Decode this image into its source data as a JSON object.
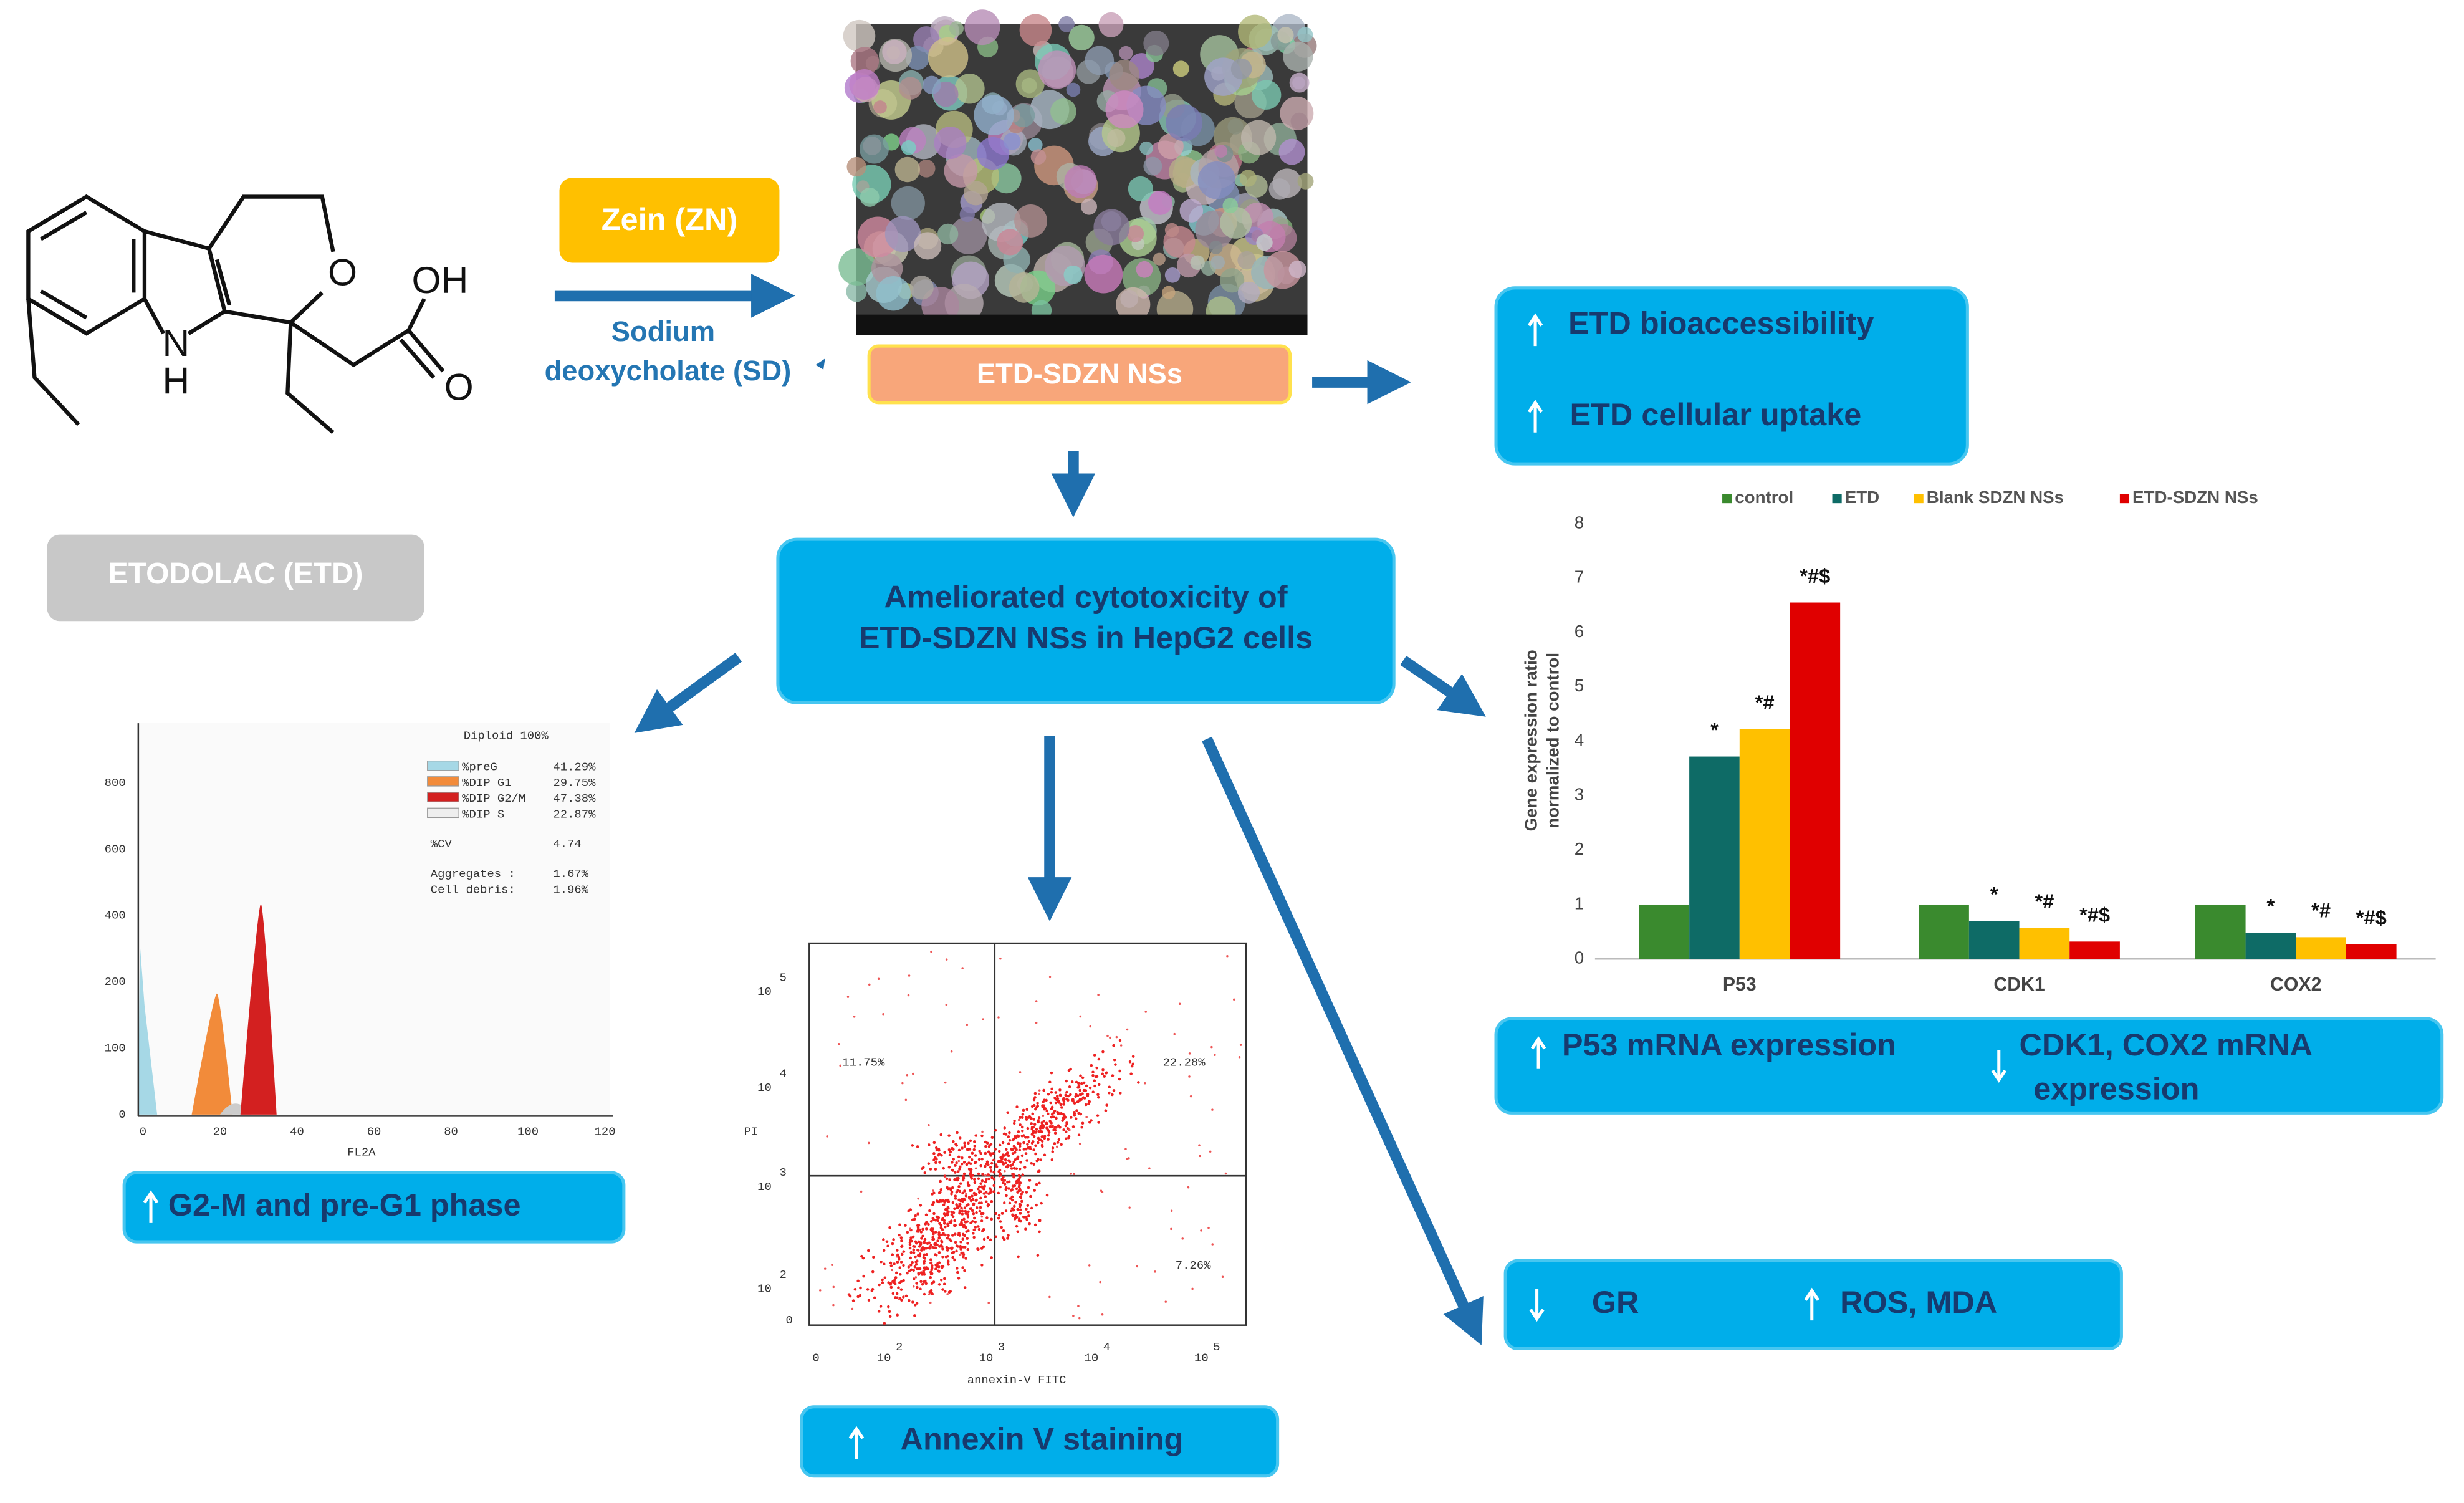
{
  "molecule": {
    "atoms": [
      "OH",
      "O",
      "O",
      "N",
      "H"
    ]
  },
  "boxes": {
    "zein": "Zein (ZN)",
    "sodium": [
      "Sodium",
      "deoxycholate (SD)"
    ],
    "nanosheets": "ETD-SDZN NSs",
    "etodolac": "ETODOLAC (ETD)",
    "cytotoxicity": [
      "Ameliorated cytotoxicity of",
      "ETD-SDZN NSs in HepG2 cells"
    ],
    "uptake": [
      "ETD bioaccessibility",
      "ETD cellular uptake"
    ],
    "expression": [
      "P53 mRNA expression",
      "CDK1, COX2 mRNA",
      "expression"
    ],
    "cell_cycle": "G2-M and pre-G1 phase",
    "annexin": "Annexin V staining",
    "oxidative": [
      "GR",
      "ROS, MDA"
    ]
  },
  "bar_chart": {
    "type": "bar",
    "y_label": [
      "Gene expression ratio",
      "normalized to control"
    ],
    "categories": [
      "P53",
      "CDK1",
      "COX2"
    ],
    "series": [
      {
        "name": "control",
        "color": "#3a8a2e",
        "values": [
          1,
          1,
          1
        ],
        "annotations": [
          null,
          null,
          null
        ]
      },
      {
        "name": "ETD",
        "color": "#0e6b66",
        "values": [
          3.72,
          0.7,
          0.48
        ],
        "annotations": [
          "*",
          "*",
          "*"
        ]
      },
      {
        "name": "Blank SDZN NSs",
        "color": "#ffc000",
        "values": [
          4.22,
          0.57,
          0.4
        ],
        "annotations": [
          "*#",
          "*#",
          "*#"
        ]
      },
      {
        "name": "ETD-SDZN NSs",
        "color": "#e00000",
        "values": [
          6.55,
          0.32,
          0.27
        ],
        "annotations": [
          "*#$",
          "*#$",
          "*#$"
        ]
      }
    ],
    "ylim": [
      0,
      8
    ],
    "yticks": [
      0,
      1,
      2,
      3,
      4,
      5,
      6,
      7,
      8
    ]
  },
  "cell_cycle_plot": {
    "title": "Diploid 100%",
    "legend": [
      [
        "%preG",
        "41.29%"
      ],
      [
        "%DIP G1",
        "29.75%"
      ],
      [
        "%DIP G2/M",
        "47.38%"
      ],
      [
        "%DIP S",
        "22.87%"
      ]
    ],
    "stats": [
      [
        "%CV",
        "4.74"
      ],
      [
        "Aggregates :",
        "1.67%"
      ],
      [
        "Cell debris:",
        "1.96%"
      ]
    ],
    "x_label": "FL2A",
    "xticks": [
      0,
      20,
      40,
      60,
      80,
      100,
      120
    ],
    "yticks": [
      0,
      100,
      200,
      400,
      600,
      800
    ]
  },
  "annexin_plot": {
    "quadrants": [
      "11.75%",
      "22.28%",
      "7.26%"
    ],
    "x_label": "annexin-V FITC",
    "y_label": "PI",
    "xtick_labels": [
      [
        "0"
      ],
      [
        "10",
        "2"
      ],
      [
        "10",
        "3"
      ],
      [
        "10",
        "4"
      ],
      [
        "10",
        "5"
      ]
    ],
    "ytick_labels": [
      [
        "10",
        "5"
      ],
      [
        "10",
        "4"
      ],
      [
        "10",
        "3"
      ],
      [
        "10",
        "2"
      ],
      [
        "0"
      ]
    ]
  }
}
